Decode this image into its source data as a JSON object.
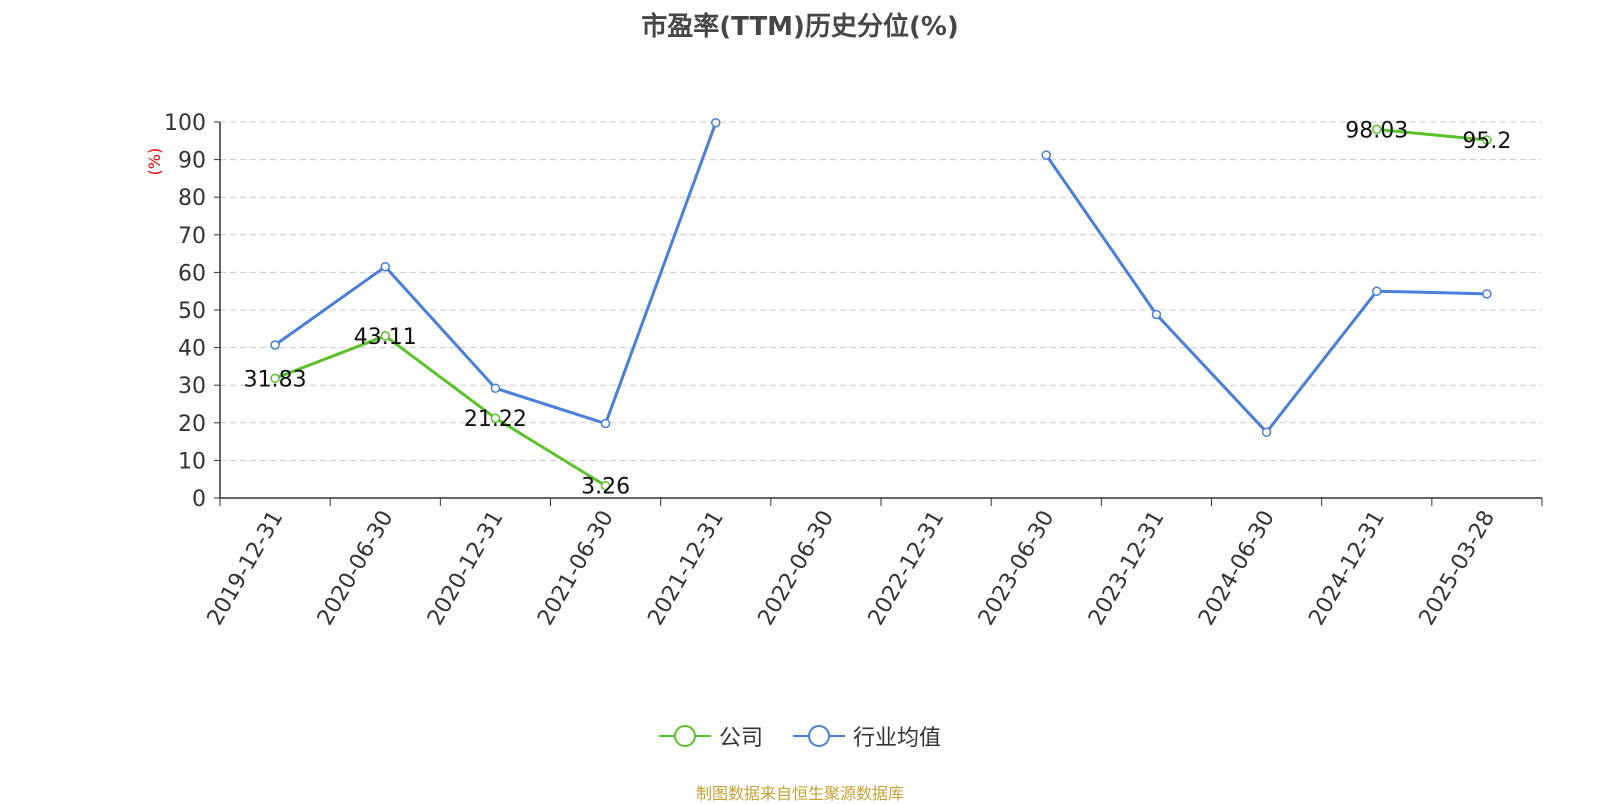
{
  "chart_data": {
    "type": "line",
    "title": "市盈率(TTM)历史分位(%)",
    "ylabel": "(%)",
    "xlabel": "",
    "ylim": [
      0,
      100
    ],
    "yticks": [
      0,
      10,
      20,
      30,
      40,
      50,
      60,
      70,
      80,
      90,
      100
    ],
    "grid": true,
    "legend_position": "bottom",
    "categories": [
      "2019-12-31",
      "2020-06-30",
      "2020-12-31",
      "2021-06-30",
      "2021-12-31",
      "2022-06-30",
      "2022-12-31",
      "2023-06-30",
      "2023-12-31",
      "2024-06-30",
      "2024-12-31",
      "2025-03-28"
    ],
    "series": [
      {
        "name": "公司",
        "color": "#5cc22a",
        "show_labels": true,
        "values": [
          31.83,
          43.11,
          21.22,
          3.26,
          null,
          null,
          null,
          null,
          null,
          null,
          98.03,
          95.2
        ]
      },
      {
        "name": "行业均值",
        "color": "#4a7fdc",
        "show_labels": false,
        "values": [
          40.7,
          61.5,
          29.2,
          19.8,
          99.8,
          null,
          null,
          91.2,
          48.8,
          17.5,
          55.0,
          54.3
        ]
      }
    ]
  },
  "source_text": "制图数据来自恒生聚源数据库",
  "ylabel_color": "#ff0000"
}
